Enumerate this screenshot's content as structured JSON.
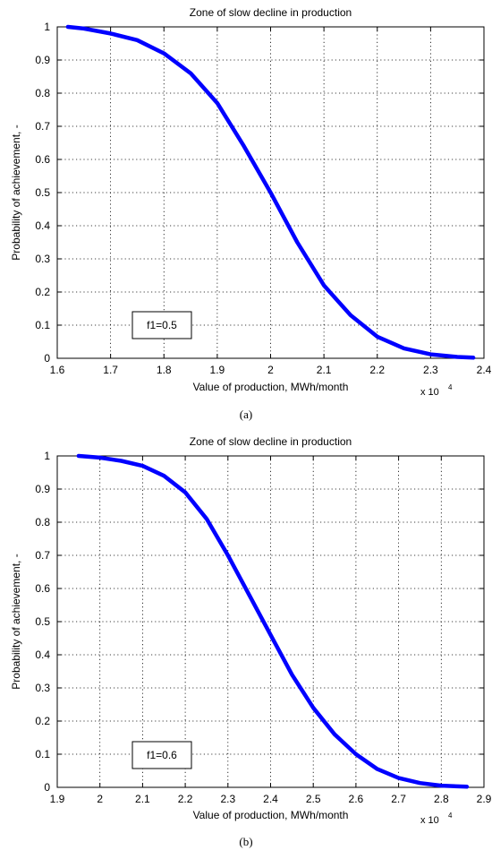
{
  "chart_data": [
    {
      "type": "line",
      "panel_caption": "(a)",
      "title": "Zone of slow decline in production",
      "xlabel": "Value of production, MWh/month",
      "ylabel": "Probability of achievement, -",
      "x_multiplier": "x 10",
      "x_multiplier_exp": "4",
      "xlim": [
        1.6,
        2.4
      ],
      "ylim": [
        0,
        1
      ],
      "xticks": [
        "1.6",
        "1.7",
        "1.8",
        "1.9",
        "2",
        "2.1",
        "2.2",
        "2.3",
        "2.4"
      ],
      "yticks": [
        "0",
        "0.1",
        "0.2",
        "0.3",
        "0.4",
        "0.5",
        "0.6",
        "0.7",
        "0.8",
        "0.9",
        "1"
      ],
      "grid": true,
      "annotation": "f1=0.5",
      "series": [
        {
          "color": "#0000ff",
          "x": [
            1.62,
            1.65,
            1.7,
            1.75,
            1.8,
            1.85,
            1.9,
            1.95,
            2.0,
            2.05,
            2.1,
            2.15,
            2.2,
            2.25,
            2.3,
            2.35,
            2.38
          ],
          "y": [
            1.0,
            0.995,
            0.98,
            0.96,
            0.92,
            0.86,
            0.77,
            0.64,
            0.5,
            0.35,
            0.22,
            0.13,
            0.065,
            0.03,
            0.012,
            0.004,
            0.002
          ]
        }
      ]
    },
    {
      "type": "line",
      "panel_caption": "(b)",
      "title": "Zone of slow decline in production",
      "xlabel": "Value of production, MWh/month",
      "ylabel": "Probability of achievement, -",
      "x_multiplier": "x 10",
      "x_multiplier_exp": "4",
      "xlim": [
        1.9,
        2.9
      ],
      "ylim": [
        0,
        1
      ],
      "xticks": [
        "1.9",
        "2",
        "2.1",
        "2.2",
        "2.3",
        "2.4",
        "2.5",
        "2.6",
        "2.7",
        "2.8",
        "2.9"
      ],
      "yticks": [
        "0",
        "0.1",
        "0.2",
        "0.3",
        "0.4",
        "0.5",
        "0.6",
        "0.7",
        "0.8",
        "0.9",
        "1"
      ],
      "grid": true,
      "annotation": "f1=0.6",
      "series": [
        {
          "color": "#0000ff",
          "x": [
            1.95,
            2.0,
            2.05,
            2.1,
            2.15,
            2.2,
            2.25,
            2.3,
            2.35,
            2.4,
            2.45,
            2.5,
            2.55,
            2.6,
            2.65,
            2.7,
            2.75,
            2.8,
            2.86
          ],
          "y": [
            1.0,
            0.995,
            0.985,
            0.97,
            0.94,
            0.89,
            0.81,
            0.7,
            0.58,
            0.46,
            0.34,
            0.24,
            0.16,
            0.1,
            0.055,
            0.028,
            0.013,
            0.005,
            0.002
          ]
        }
      ]
    }
  ]
}
